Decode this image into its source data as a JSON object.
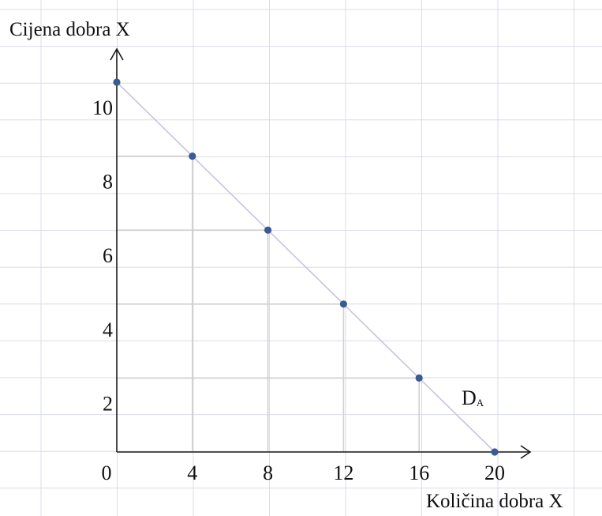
{
  "chart_data": {
    "type": "line",
    "xlabel": "Količina dobra X",
    "ylabel": "Cijena dobra X",
    "xlim": [
      0,
      20
    ],
    "ylim": [
      0,
      10
    ],
    "x_ticks": [
      {
        "value": 0,
        "label": "0"
      },
      {
        "value": 4,
        "label": "4"
      },
      {
        "value": 8,
        "label": "8"
      },
      {
        "value": 12,
        "label": "12"
      },
      {
        "value": 16,
        "label": "16"
      },
      {
        "value": 20,
        "label": "20"
      }
    ],
    "y_ticks": [
      {
        "value": 2,
        "label": "2"
      },
      {
        "value": 4,
        "label": "4"
      },
      {
        "value": 6,
        "label": "6"
      },
      {
        "value": 8,
        "label": "8"
      },
      {
        "value": 10,
        "label": "10"
      }
    ],
    "grid": true,
    "series": [
      {
        "name": "DA",
        "label_main": "D",
        "label_sub": "A",
        "x": [
          0,
          4,
          8,
          12,
          16,
          20
        ],
        "y": [
          10,
          8,
          6,
          4,
          2,
          0
        ]
      }
    ],
    "colors": {
      "grid": "#d9dce8",
      "curve": "#c9c3dc",
      "point": "#3a5a94",
      "guide": "#d0d0d0",
      "axis": "#1a1a1a"
    }
  }
}
